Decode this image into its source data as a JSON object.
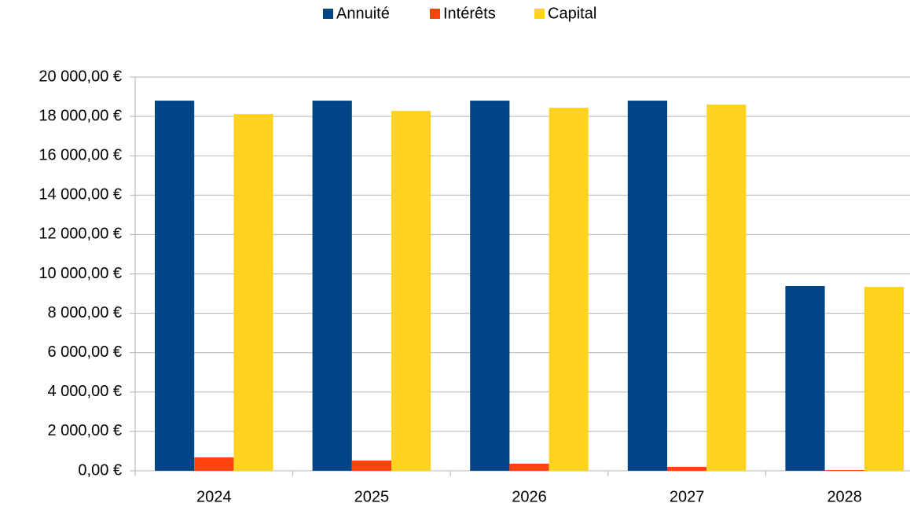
{
  "chart_data": {
    "type": "bar",
    "categories": [
      "2024",
      "2025",
      "2026",
      "2027",
      "2028"
    ],
    "series": [
      {
        "name": "Annuité",
        "color": "#004586",
        "values": [
          18800,
          18800,
          18800,
          18800,
          9380
        ]
      },
      {
        "name": "Intérêts",
        "color": "#ff420e",
        "values": [
          680,
          520,
          360,
          200,
          40
        ]
      },
      {
        "name": "Capital",
        "color": "#ffd320",
        "values": [
          18120,
          18280,
          18440,
          18600,
          9340
        ]
      }
    ],
    "ylim": [
      0,
      20000
    ],
    "yticks": [
      {
        "value": 0,
        "label": "0,00 €"
      },
      {
        "value": 2000,
        "label": "2 000,00 €"
      },
      {
        "value": 4000,
        "label": "4 000,00 €"
      },
      {
        "value": 6000,
        "label": "6 000,00 €"
      },
      {
        "value": 8000,
        "label": "8 000,00 €"
      },
      {
        "value": 10000,
        "label": "10 000,00 €"
      },
      {
        "value": 12000,
        "label": "12 000,00 €"
      },
      {
        "value": 14000,
        "label": "14 000,00 €"
      },
      {
        "value": 16000,
        "label": "16 000,00 €"
      },
      {
        "value": 18000,
        "label": "18 000,00 €"
      },
      {
        "value": 20000,
        "label": "20 000,00 €"
      }
    ],
    "grid": true,
    "legend": "top"
  }
}
